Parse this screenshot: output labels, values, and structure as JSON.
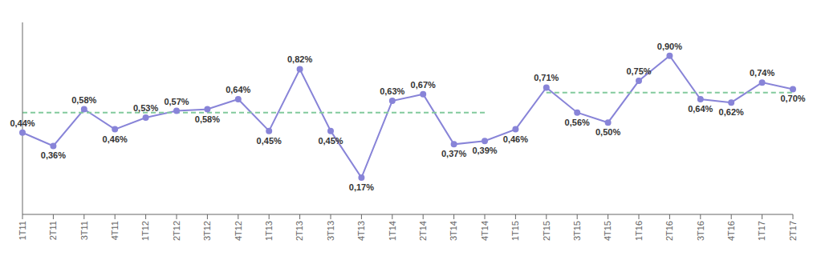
{
  "chart_data": {
    "type": "line",
    "categories": [
      "1T11",
      "2T11",
      "3T11",
      "4T11",
      "1T12",
      "2T12",
      "3T12",
      "4T12",
      "1T13",
      "2T13",
      "3T13",
      "4T13",
      "1T14",
      "2T14",
      "3T14",
      "4T14",
      "1T15",
      "2T15",
      "3T15",
      "4T15",
      "1T16",
      "2T16",
      "3T16",
      "4T16",
      "1T17",
      "2T17"
    ],
    "series": [
      {
        "values": [
          0.44,
          0.36,
          0.58,
          0.46,
          0.53,
          0.57,
          0.58,
          0.64,
          0.45,
          0.82,
          0.45,
          0.17,
          0.63,
          0.67,
          0.37,
          0.39,
          0.46,
          0.71,
          0.56,
          0.5,
          0.75,
          0.9,
          0.64,
          0.62,
          0.74,
          0.7
        ],
        "value_labels": [
          "0,44%",
          "0,36%",
          "0,58%",
          "0,46%",
          "0,53%",
          "0,57%",
          "0,58%",
          "0,64%",
          "0,45%",
          "0,82%",
          "0,45%",
          "0,17%",
          "0,63%",
          "0,67%",
          "0,37%",
          "0,39%",
          "0,46%",
          "0,71%",
          "0,56%",
          "0,50%",
          "0,75%",
          "0,90%",
          "0,64%",
          "0,62%",
          "0,74%",
          "0,70%"
        ],
        "marker": "o",
        "line_style": "solid"
      },
      {
        "values": [
          0.56,
          0.56,
          0.56,
          0.56,
          0.56,
          0.56,
          0.56,
          0.56,
          0.56,
          0.56,
          0.56,
          0.56,
          0.56,
          0.56,
          0.56,
          0.56,
          null,
          0.68,
          0.68,
          0.68,
          0.68,
          0.68,
          0.68,
          0.68,
          0.68,
          0.68
        ],
        "marker": "none",
        "line_style": "dashed"
      }
    ],
    "ylim": [
      -0.05,
      1.1
    ],
    "data_labels": true,
    "tick_labels": "x"
  }
}
